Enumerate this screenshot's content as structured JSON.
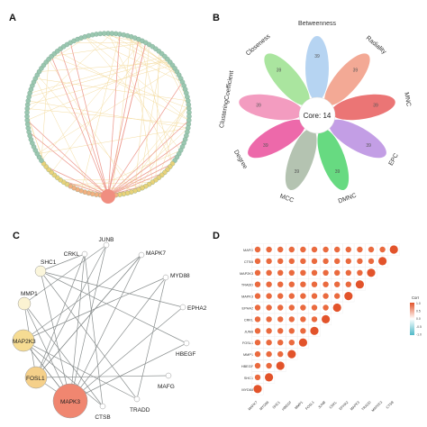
{
  "panels": {
    "a": {
      "label": "A"
    },
    "b": {
      "label": "B",
      "center_text": "Core: 14",
      "petals": [
        {
          "name": "Betweenness",
          "value": "39",
          "color": "#a9cdf0"
        },
        {
          "name": "Radiality",
          "value": "39",
          "color": "#f19a82"
        },
        {
          "name": "MNC",
          "value": "39",
          "color": "#e85d5d"
        },
        {
          "name": "EPC",
          "value": "39",
          "color": "#b98de0"
        },
        {
          "name": "DMNC",
          "value": "39",
          "color": "#4cd36b"
        },
        {
          "name": "MCC",
          "value": "39",
          "color": "#a7b9a3"
        },
        {
          "name": "Degree",
          "value": "39",
          "color": "#ea4f9b"
        },
        {
          "name": "ClusteringCoefficient",
          "value": "39",
          "color": "#f18bb5"
        },
        {
          "name": "Closeness",
          "value": "39",
          "color": "#9be08e"
        }
      ]
    },
    "c": {
      "label": "C",
      "nodes": [
        {
          "id": "CRKL",
          "label": "CRKL"
        },
        {
          "id": "JUNB",
          "label": "JUNB"
        },
        {
          "id": "MAPK7",
          "label": "MAPK7"
        },
        {
          "id": "SHC1",
          "label": "SHC1"
        },
        {
          "id": "MYD88",
          "label": "MYD88"
        },
        {
          "id": "MMP1",
          "label": "MMP1"
        },
        {
          "id": "EPHA2",
          "label": "EPHA2"
        },
        {
          "id": "MAP2K3",
          "label": "MAP2K3"
        },
        {
          "id": "HBEGF",
          "label": "HBEGF"
        },
        {
          "id": "FOSL1",
          "label": "FOSL1"
        },
        {
          "id": "MAFG",
          "label": "MAFG"
        },
        {
          "id": "TRADD",
          "label": "TRADD"
        },
        {
          "id": "CTSB",
          "label": "CTSB"
        },
        {
          "id": "MAPK3",
          "label": "MAPK3"
        }
      ]
    },
    "d": {
      "label": "D",
      "rows": [
        "MAFG",
        "CTSB",
        "MAP2K3",
        "TRADD",
        "MAPK3",
        "EPHA2",
        "CRKL",
        "JUNB",
        "FOSL1",
        "MMP1",
        "HBEGF",
        "SHC1",
        "MYD88"
      ],
      "cols": [
        "MAPK7",
        "MYD88",
        "SHC1",
        "HBEGF",
        "MMP1",
        "FOSL1",
        "JUNB",
        "CRKL",
        "EPHA2",
        "MAPK3",
        "TRADD",
        "MAP2K3",
        "CTSB"
      ],
      "legend": {
        "title": "Corr",
        "ticks": [
          "1.0",
          "0.5",
          "0.0",
          "-0.5",
          "-1.0"
        ]
      }
    }
  }
}
